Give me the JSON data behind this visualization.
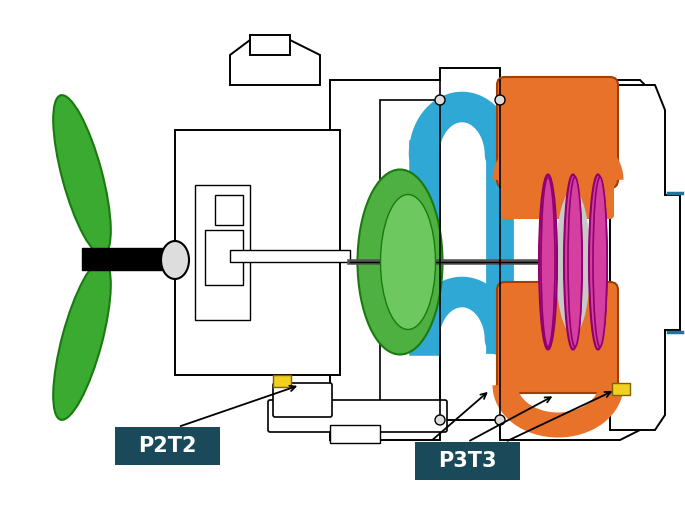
{
  "bg_color": "#ffffff",
  "label1": "P2T2",
  "label2": "P3T3",
  "label_bg_color": "#1a4a5a",
  "label_text_color": "#ffffff",
  "label_fontsize": 15,
  "figsize": [
    6.85,
    5.24
  ],
  "dpi": 100,
  "colors": {
    "orange": "#e8722a",
    "blue": "#2fa8d5",
    "green": "#4db040",
    "magenta": "#d43fa0",
    "yellow": "#f0d020",
    "black": "#000000",
    "white": "#ffffff",
    "gray": "#aaaaaa",
    "darkgray": "#555555",
    "ltgray": "#dddddd",
    "prop_green": "#3aaa30",
    "dark_green": "#1a7a10",
    "blue_dark": "#1a78a0"
  }
}
